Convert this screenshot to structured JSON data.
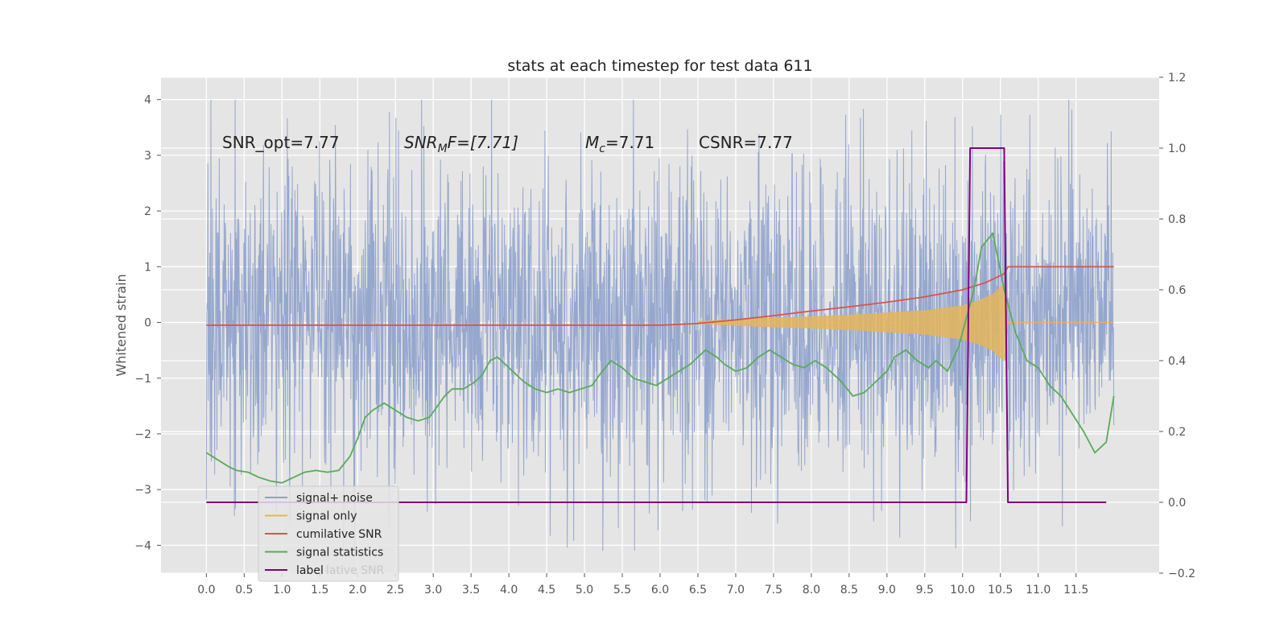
{
  "chart_data": {
    "type": "line",
    "title": "stats at each timestep for test data 611",
    "ylabel": "Whitened strain",
    "xlim": [
      -0.6,
      12.6
    ],
    "ylim": [
      -4.5,
      4.4
    ],
    "y2lim": [
      -0.2,
      1.2
    ],
    "xticks": [
      0.0,
      0.5,
      1.0,
      1.5,
      2.0,
      2.5,
      3.0,
      3.5,
      4.0,
      4.5,
      5.0,
      5.5,
      6.0,
      6.5,
      7.0,
      7.5,
      8.0,
      8.5,
      9.0,
      9.5,
      10.0,
      10.5,
      11.0,
      11.5
    ],
    "xtick_labels": [
      "0.0",
      "0.5",
      "1.0",
      "1.5",
      "2.0",
      "2.5",
      "3.0",
      "3.5",
      "4.0",
      "4.5",
      "5.0",
      "5.5",
      "6.0",
      "6.5",
      "7.0",
      "7.5",
      "8.0",
      "8.5",
      "9.0",
      "9.5",
      "10.0",
      "10.5",
      "11.0",
      "11.5"
    ],
    "yticks": [
      -4,
      -3,
      -2,
      -1,
      0,
      1,
      2,
      3,
      4
    ],
    "ytick_labels": [
      "−4",
      "−3",
      "−2",
      "−1",
      "0",
      "1",
      "2",
      "3",
      "4"
    ],
    "y2ticks": [
      -0.2,
      0.0,
      0.2,
      0.4,
      0.6,
      0.8,
      1.0,
      1.2
    ],
    "y2tick_labels": [
      "−0.2",
      "0.0",
      "0.2",
      "0.4",
      "0.6",
      "0.8",
      "1.0",
      "1.2"
    ],
    "grid": true,
    "legend_position": "lower-left",
    "annotations": {
      "snr_opt": "SNR_opt=7.77",
      "snr_mf_main": "SNR",
      "snr_mf_sub": "M",
      "snr_mf_rest": "F=[7.71]",
      "mc_main": "M",
      "mc_sub": "c",
      "mc_rest": "=7.71",
      "csnr": "CSNR=7.77"
    },
    "ghost_legend_text": "lative SNR",
    "series": [
      {
        "name": "signal+ noise",
        "axis": "left",
        "color": "#8da0cb",
        "envelope": {
          "x_start": 0.0,
          "x_end": 12.0,
          "typical_abs": 1.9,
          "peak_upper": 4.0,
          "peak_lower": -4.1
        }
      },
      {
        "name": "signal only",
        "axis": "left",
        "color": "#e5b55a",
        "envelope": {
          "x": [
            6.5,
            7.0,
            7.5,
            8.0,
            8.5,
            9.0,
            9.5,
            10.0,
            10.2,
            10.4,
            10.55,
            10.6
          ],
          "amplitude": [
            0.02,
            0.05,
            0.08,
            0.1,
            0.13,
            0.17,
            0.21,
            0.3,
            0.38,
            0.5,
            0.7,
            0.0
          ]
        }
      },
      {
        "name": "cumilative SNR",
        "axis": "right",
        "color": "#d9534f",
        "x": [
          0.0,
          6.0,
          6.5,
          7.0,
          7.5,
          8.0,
          8.5,
          9.0,
          9.5,
          10.0,
          10.3,
          10.55,
          10.6,
          12.0
        ],
        "y": [
          0.5,
          0.5,
          0.505,
          0.515,
          0.527,
          0.54,
          0.552,
          0.565,
          0.58,
          0.6,
          0.62,
          0.645,
          0.665,
          0.665
        ]
      },
      {
        "name": "signal statistics",
        "axis": "right",
        "color": "#5aaa5a",
        "x": [
          0.0,
          0.15,
          0.3,
          0.4,
          0.55,
          0.7,
          0.85,
          1.0,
          1.15,
          1.3,
          1.45,
          1.6,
          1.75,
          1.9,
          2.0,
          2.1,
          2.2,
          2.35,
          2.5,
          2.65,
          2.8,
          2.95,
          3.05,
          3.15,
          3.25,
          3.4,
          3.55,
          3.65,
          3.75,
          3.85,
          3.95,
          4.05,
          4.2,
          4.35,
          4.5,
          4.65,
          4.8,
          4.95,
          5.1,
          5.2,
          5.35,
          5.5,
          5.65,
          5.8,
          5.95,
          6.1,
          6.25,
          6.4,
          6.5,
          6.6,
          6.75,
          6.85,
          7.0,
          7.15,
          7.3,
          7.45,
          7.6,
          7.75,
          7.9,
          8.05,
          8.2,
          8.4,
          8.55,
          8.7,
          8.85,
          9.0,
          9.1,
          9.25,
          9.4,
          9.55,
          9.65,
          9.8,
          9.95,
          10.05,
          10.15,
          10.25,
          10.4,
          10.55,
          10.7,
          10.85,
          11.0,
          11.15,
          11.3,
          11.45,
          11.6,
          11.75,
          11.9,
          12.0
        ],
        "y": [
          0.14,
          0.12,
          0.1,
          0.09,
          0.085,
          0.07,
          0.06,
          0.055,
          0.07,
          0.085,
          0.09,
          0.085,
          0.09,
          0.13,
          0.18,
          0.24,
          0.26,
          0.28,
          0.26,
          0.24,
          0.23,
          0.24,
          0.27,
          0.3,
          0.32,
          0.32,
          0.34,
          0.36,
          0.4,
          0.41,
          0.39,
          0.37,
          0.34,
          0.32,
          0.31,
          0.32,
          0.31,
          0.32,
          0.33,
          0.36,
          0.4,
          0.38,
          0.35,
          0.34,
          0.33,
          0.35,
          0.37,
          0.39,
          0.41,
          0.43,
          0.41,
          0.39,
          0.37,
          0.38,
          0.41,
          0.43,
          0.41,
          0.39,
          0.38,
          0.4,
          0.38,
          0.34,
          0.3,
          0.31,
          0.34,
          0.37,
          0.41,
          0.43,
          0.4,
          0.38,
          0.4,
          0.37,
          0.44,
          0.52,
          0.6,
          0.72,
          0.76,
          0.6,
          0.48,
          0.4,
          0.38,
          0.33,
          0.3,
          0.25,
          0.2,
          0.14,
          0.17,
          0.3
        ]
      },
      {
        "name": "label",
        "axis": "right",
        "color": "#800080",
        "x": [
          0.0,
          10.05,
          10.1,
          10.55,
          10.6,
          11.9
        ],
        "y": [
          0.0,
          0.0,
          1.0,
          1.0,
          0.0,
          0.0
        ]
      }
    ]
  }
}
